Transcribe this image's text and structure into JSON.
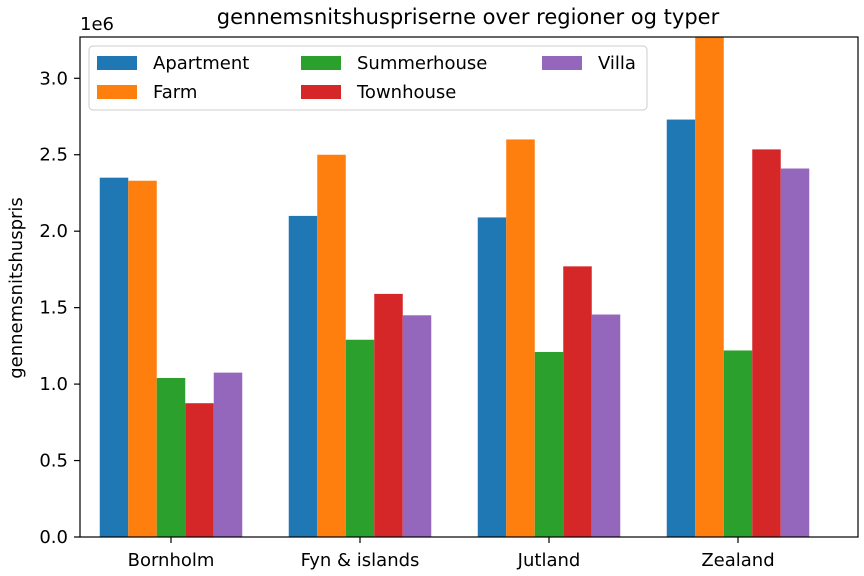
{
  "chart_data": {
    "type": "bar",
    "title": "gennemsnitshuspriserne over regioner og typer",
    "xlabel": "",
    "ylabel": "gennemsnitshuspris",
    "offset_label": "1e6",
    "categories": [
      "Bornholm",
      "Fyn & islands",
      "Jutland",
      "Zealand"
    ],
    "ylim": [
      0,
      3270000
    ],
    "yticks": [
      {
        "value": 0,
        "label": "0.0"
      },
      {
        "value": 500000,
        "label": "0.5"
      },
      {
        "value": 1000000,
        "label": "1.0"
      },
      {
        "value": 1500000,
        "label": "1.5"
      },
      {
        "value": 2000000,
        "label": "2.0"
      },
      {
        "value": 2500000,
        "label": "2.5"
      },
      {
        "value": 3000000,
        "label": "3.0"
      }
    ],
    "grid": false,
    "legend_position": "top-left",
    "legend_columns": 3,
    "series": [
      {
        "name": "Apartment",
        "color": "#1f77b4",
        "values": [
          2350000,
          2100000,
          2090000,
          2730000
        ]
      },
      {
        "name": "Farm",
        "color": "#ff7f0e",
        "values": [
          2330000,
          2500000,
          2600000,
          3270000
        ]
      },
      {
        "name": "Summerhouse",
        "color": "#2ca02c",
        "values": [
          1040000,
          1290000,
          1210000,
          1220000
        ]
      },
      {
        "name": "Townhouse",
        "color": "#d62728",
        "values": [
          875000,
          1590000,
          1770000,
          2535000
        ]
      },
      {
        "name": "Villa",
        "color": "#9467bd",
        "values": [
          1075000,
          1450000,
          1455000,
          2410000
        ]
      }
    ]
  }
}
